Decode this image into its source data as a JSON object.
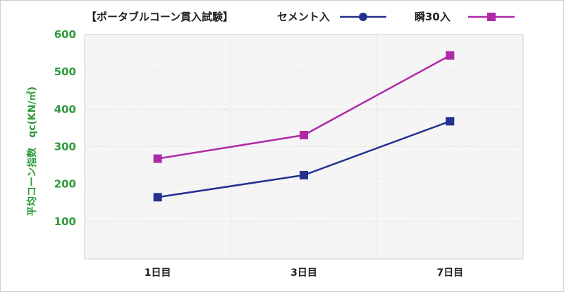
{
  "chart_data": {
    "type": "line",
    "title": "【ポータブルコーン貫入試験】",
    "ylabel": "平均コーン指数　qc(KN/㎡)",
    "xlabel": "",
    "categories": [
      "1日目",
      "3日目",
      "7日目"
    ],
    "ylim": [
      0,
      600
    ],
    "yticks": [
      100,
      200,
      300,
      400,
      500,
      600
    ],
    "grid": true,
    "legend_position": "top",
    "series": [
      {
        "name": "セメント入",
        "values": [
          165,
          224,
          368
        ],
        "color": "#24318f",
        "marker": "square",
        "legend_marker": "circle"
      },
      {
        "name": "瞬30入",
        "values": [
          268,
          331,
          544
        ],
        "color": "#b02aa8",
        "marker": "square",
        "legend_marker": "square"
      }
    ]
  }
}
